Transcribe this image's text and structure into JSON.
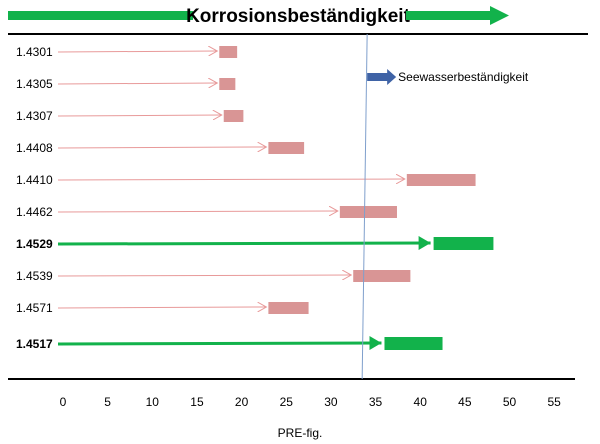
{
  "chart_data": {
    "type": "bar",
    "title": "Korrosionsbeständigkeit",
    "xlabel": "PRE-fig.",
    "ylabel": "",
    "xlim": [
      0,
      57
    ],
    "x_ticks": [
      "0",
      "5",
      "10",
      "15",
      "20",
      "25",
      "30",
      "35",
      "40",
      "45",
      "50",
      "55"
    ],
    "reference_line": {
      "x": 33.5,
      "label": "Seewasserbeständigkeit"
    },
    "grid": false,
    "rows": [
      {
        "label": "1.4301",
        "start": 17.5,
        "end": 19.5,
        "highlight": false
      },
      {
        "label": "1.4305",
        "start": 17.5,
        "end": 19.3,
        "highlight": false
      },
      {
        "label": "1.4307",
        "start": 18.0,
        "end": 20.2,
        "highlight": false
      },
      {
        "label": "1.4408",
        "start": 23.0,
        "end": 27.0,
        "highlight": false
      },
      {
        "label": "1.4410",
        "start": 38.5,
        "end": 46.2,
        "highlight": false
      },
      {
        "label": "1.4462",
        "start": 31.0,
        "end": 37.4,
        "highlight": false
      },
      {
        "label": "1.4529",
        "start": 41.5,
        "end": 48.2,
        "highlight": true
      },
      {
        "label": "1.4539",
        "start": 32.5,
        "end": 38.9,
        "highlight": false
      },
      {
        "label": "1.4571",
        "start": 23.0,
        "end": 27.5,
        "highlight": false
      },
      {
        "label": "1.4517",
        "start": 36.0,
        "end": 42.5,
        "highlight": true
      }
    ],
    "colors": {
      "normal_bar": "#d99595",
      "normal_arrow": "#e89a9a",
      "highlight": "#12b24b",
      "title_arrows": "#12b24b",
      "reference_line": "#7f9fcc",
      "annotation_arrow": "#3f63a6"
    }
  }
}
